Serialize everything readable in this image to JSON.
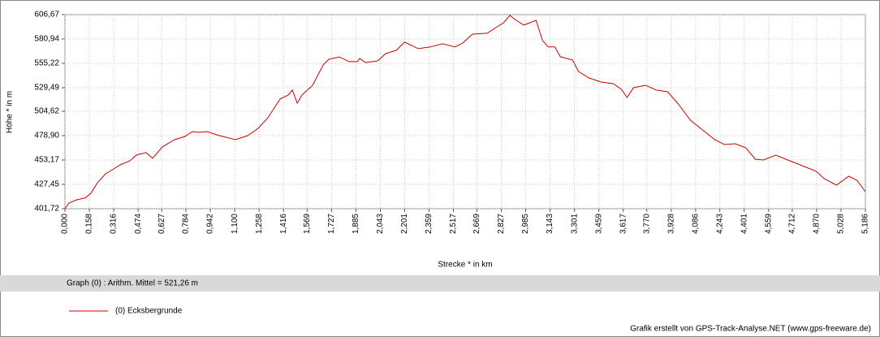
{
  "chart_data": {
    "type": "line",
    "ylabel": "Höhe *  in  m",
    "xlabel": "Strecke *  in  km",
    "annotation": "Graph (0) :  Arithm. Mittel = 521,26 m",
    "credit": "Grafik erstellt von GPS-Track-Analyse.NET (www.gps-freeware.de)",
    "grid": true,
    "xlim": [
      0,
      5.186
    ],
    "ylim": [
      401.72,
      606.67
    ],
    "yticks": [
      {
        "value": 401.72,
        "label": "401,72"
      },
      {
        "value": 427.45,
        "label": "427,45"
      },
      {
        "value": 453.17,
        "label": "453,17"
      },
      {
        "value": 478.9,
        "label": "478,90"
      },
      {
        "value": 504.62,
        "label": "504,62"
      },
      {
        "value": 529.49,
        "label": "529,49"
      },
      {
        "value": 555.22,
        "label": "555,22"
      },
      {
        "value": 580.94,
        "label": "580,94"
      },
      {
        "value": 606.67,
        "label": "606,67"
      }
    ],
    "xticks": [
      {
        "value": 0,
        "label": "0,000"
      },
      {
        "value": 0.158,
        "label": "0,158"
      },
      {
        "value": 0.316,
        "label": "0,316"
      },
      {
        "value": 0.474,
        "label": "0,474"
      },
      {
        "value": 0.627,
        "label": "0,627"
      },
      {
        "value": 0.784,
        "label": "0,784"
      },
      {
        "value": 0.942,
        "label": "0,942"
      },
      {
        "value": 1.1,
        "label": "1,100"
      },
      {
        "value": 1.258,
        "label": "1,258"
      },
      {
        "value": 1.416,
        "label": "1,416"
      },
      {
        "value": 1.569,
        "label": "1,569"
      },
      {
        "value": 1.727,
        "label": "1,727"
      },
      {
        "value": 1.885,
        "label": "1,885"
      },
      {
        "value": 2.043,
        "label": "2,043"
      },
      {
        "value": 2.201,
        "label": "2,201"
      },
      {
        "value": 2.359,
        "label": "2,359"
      },
      {
        "value": 2.517,
        "label": "2,517"
      },
      {
        "value": 2.669,
        "label": "2,669"
      },
      {
        "value": 2.827,
        "label": "2,827"
      },
      {
        "value": 2.985,
        "label": "2,985"
      },
      {
        "value": 3.143,
        "label": "3,143"
      },
      {
        "value": 3.301,
        "label": "3,301"
      },
      {
        "value": 3.459,
        "label": "3,459"
      },
      {
        "value": 3.617,
        "label": "3,617"
      },
      {
        "value": 3.77,
        "label": "3,770"
      },
      {
        "value": 3.928,
        "label": "3,928"
      },
      {
        "value": 4.086,
        "label": "4,086"
      },
      {
        "value": 4.243,
        "label": "4,243"
      },
      {
        "value": 4.401,
        "label": "4,401"
      },
      {
        "value": 4.559,
        "label": "4,559"
      },
      {
        "value": 4.712,
        "label": "4,712"
      },
      {
        "value": 4.87,
        "label": "4,870"
      },
      {
        "value": 5.028,
        "label": "5,028"
      },
      {
        "value": 5.186,
        "label": "5,186"
      }
    ],
    "x": [
      0,
      0.026,
      0.079,
      0.131,
      0.168,
      0.21,
      0.263,
      0.316,
      0.358,
      0.421,
      0.463,
      0.526,
      0.568,
      0.631,
      0.71,
      0.778,
      0.826,
      0.868,
      0.92,
      1.0,
      1.105,
      1.184,
      1.252,
      1.315,
      1.394,
      1.447,
      1.473,
      1.505,
      1.536,
      1.604,
      1.673,
      1.71,
      1.778,
      1.841,
      1.894,
      1.91,
      1.947,
      2.026,
      2.078,
      2.147,
      2.2,
      2.289,
      2.368,
      2.447,
      2.526,
      2.578,
      2.641,
      2.736,
      2.8,
      2.841,
      2.883,
      2.915,
      2.973,
      3.052,
      3.094,
      3.131,
      3.173,
      3.21,
      3.289,
      3.326,
      3.394,
      3.473,
      3.552,
      3.605,
      3.642,
      3.684,
      3.763,
      3.831,
      3.905,
      3.973,
      4.052,
      4.131,
      4.21,
      4.273,
      4.342,
      4.41,
      4.473,
      4.526,
      4.605,
      4.657,
      4.736,
      4.815,
      4.868,
      4.92,
      4.999,
      5.078,
      5.131,
      5.186
    ],
    "series": [
      {
        "name": "(0) Ecksbergrunde",
        "color": "#cc0000",
        "values": [
          401.7,
          407.7,
          411.2,
          413,
          418,
          429,
          438.6,
          443.7,
          448,
          452.3,
          458.3,
          461,
          455,
          467,
          474.6,
          478,
          483.2,
          482.3,
          483.2,
          478.9,
          474.6,
          478.9,
          486.6,
          497.8,
          517.5,
          521.8,
          527,
          513.2,
          521.8,
          532,
          553.5,
          559.5,
          562,
          557,
          557,
          560.4,
          556,
          557.8,
          565.5,
          569,
          577.6,
          570.7,
          572.5,
          575.9,
          572.5,
          576.7,
          586.1,
          587,
          593.8,
          598,
          605.8,
          601.6,
          595.6,
          600.7,
          579.3,
          572.5,
          572.5,
          562.2,
          558.7,
          546.7,
          539.9,
          535.5,
          533.8,
          527.8,
          519.2,
          529.5,
          532.1,
          527,
          525.2,
          512.3,
          495.2,
          484.9,
          474.6,
          469.5,
          470.3,
          466.1,
          454,
          453.2,
          458.3,
          454.9,
          449.7,
          444.6,
          441.2,
          433.4,
          426.6,
          436,
          431.7,
          419.7
        ]
      }
    ]
  }
}
